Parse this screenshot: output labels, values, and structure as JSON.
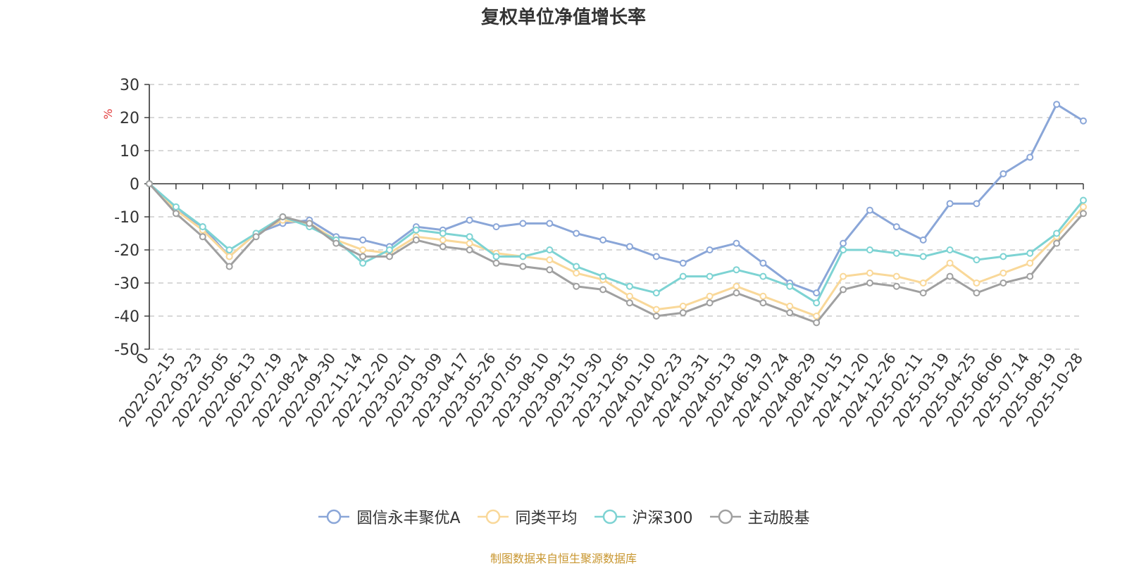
{
  "chart_data": {
    "type": "line",
    "title": "复权单位净值增长率",
    "ylabel": "%",
    "ylim": [
      -50,
      30
    ],
    "yticks": [
      30,
      20,
      10,
      0,
      -10,
      -20,
      -30,
      -40,
      -50
    ],
    "grid": true,
    "legend_position": "bottom",
    "x_tick_labels": [
      "0",
      "2022-02-15",
      "2022-03-23",
      "2022-05-05",
      "2022-06-13",
      "2022-07-19",
      "2022-08-24",
      "2022-09-30",
      "2022-11-14",
      "2022-12-20",
      "2023-02-01",
      "2023-03-09",
      "2023-04-17",
      "2023-05-26",
      "2023-07-05",
      "2023-08-10",
      "2023-09-15",
      "2023-10-30",
      "2023-12-05",
      "2024-01-10",
      "2024-02-23",
      "2024-03-31",
      "2024-05-13",
      "2024-06-19",
      "2024-07-24",
      "2024-08-29",
      "2024-10-15",
      "2024-11-20",
      "2024-12-26",
      "2025-02-11",
      "2025-03-19",
      "2025-04-25",
      "2025-06-06",
      "2025-07-14",
      "2025-08-19",
      "2025-10-28"
    ],
    "x": [
      "0",
      "2022-02-15",
      "2022-03-23",
      "2022-05-05",
      "2022-06-13",
      "2022-07-19",
      "2022-08-24",
      "2022-09-30",
      "2022-11-14",
      "2022-12-20",
      "2023-02-01",
      "2023-03-09",
      "2023-04-17",
      "2023-05-26",
      "2023-07-05",
      "2023-08-10",
      "2023-09-15",
      "2023-10-30",
      "2023-12-05",
      "2024-01-10",
      "2024-02-23",
      "2024-03-31",
      "2024-05-13",
      "2024-06-19",
      "2024-07-24",
      "2024-08-29",
      "2024-10-15",
      "2024-11-20",
      "2024-12-26",
      "2025-02-11",
      "2025-03-19",
      "2025-04-25",
      "2025-06-06",
      "2025-07-14",
      "2025-08-19",
      "2025-10-28"
    ],
    "series": [
      {
        "name": "圆信永丰聚优A",
        "color": "#8aa6d8",
        "values": [
          0,
          -8,
          -13,
          -22,
          -15,
          -12,
          -11,
          -16,
          -17,
          -19,
          -13,
          -14,
          -11,
          -13,
          -12,
          -12,
          -15,
          -17,
          -19,
          -22,
          -24,
          -20,
          -18,
          -24,
          -30,
          -33,
          -18,
          -8,
          -13,
          -17,
          -6,
          -6,
          3,
          8,
          24,
          19
        ]
      },
      {
        "name": "同类平均",
        "color": "#f9d899",
        "values": [
          0,
          -8,
          -14,
          -22,
          -15,
          -11,
          -12,
          -17,
          -20,
          -21,
          -16,
          -17,
          -18,
          -21,
          -22,
          -23,
          -27,
          -29,
          -34,
          -38,
          -37,
          -34,
          -31,
          -34,
          -37,
          -40,
          -28,
          -27,
          -28,
          -30,
          -24,
          -30,
          -27,
          -24,
          -16,
          -7
        ]
      },
      {
        "name": "沪深300",
        "color": "#7dd3d3",
        "values": [
          0,
          -7,
          -13,
          -20,
          -15,
          -10,
          -13,
          -17,
          -24,
          -20,
          -14,
          -15,
          -16,
          -22,
          -22,
          -20,
          -25,
          -28,
          -31,
          -33,
          -28,
          -28,
          -26,
          -28,
          -31,
          -36,
          -20,
          -20,
          -21,
          -22,
          -20,
          -23,
          -22,
          -21,
          -15,
          -5
        ]
      },
      {
        "name": "主动股基",
        "color": "#a0a0a0",
        "values": [
          0,
          -9,
          -16,
          -25,
          -16,
          -10,
          -12,
          -18,
          -22,
          -22,
          -17,
          -19,
          -20,
          -24,
          -25,
          -26,
          -31,
          -32,
          -36,
          -40,
          -39,
          -36,
          -33,
          -36,
          -39,
          -42,
          -32,
          -30,
          -31,
          -33,
          -28,
          -33,
          -30,
          -28,
          -18,
          -9
        ]
      }
    ],
    "footer": "制图数据来自恒生聚源数据库"
  }
}
